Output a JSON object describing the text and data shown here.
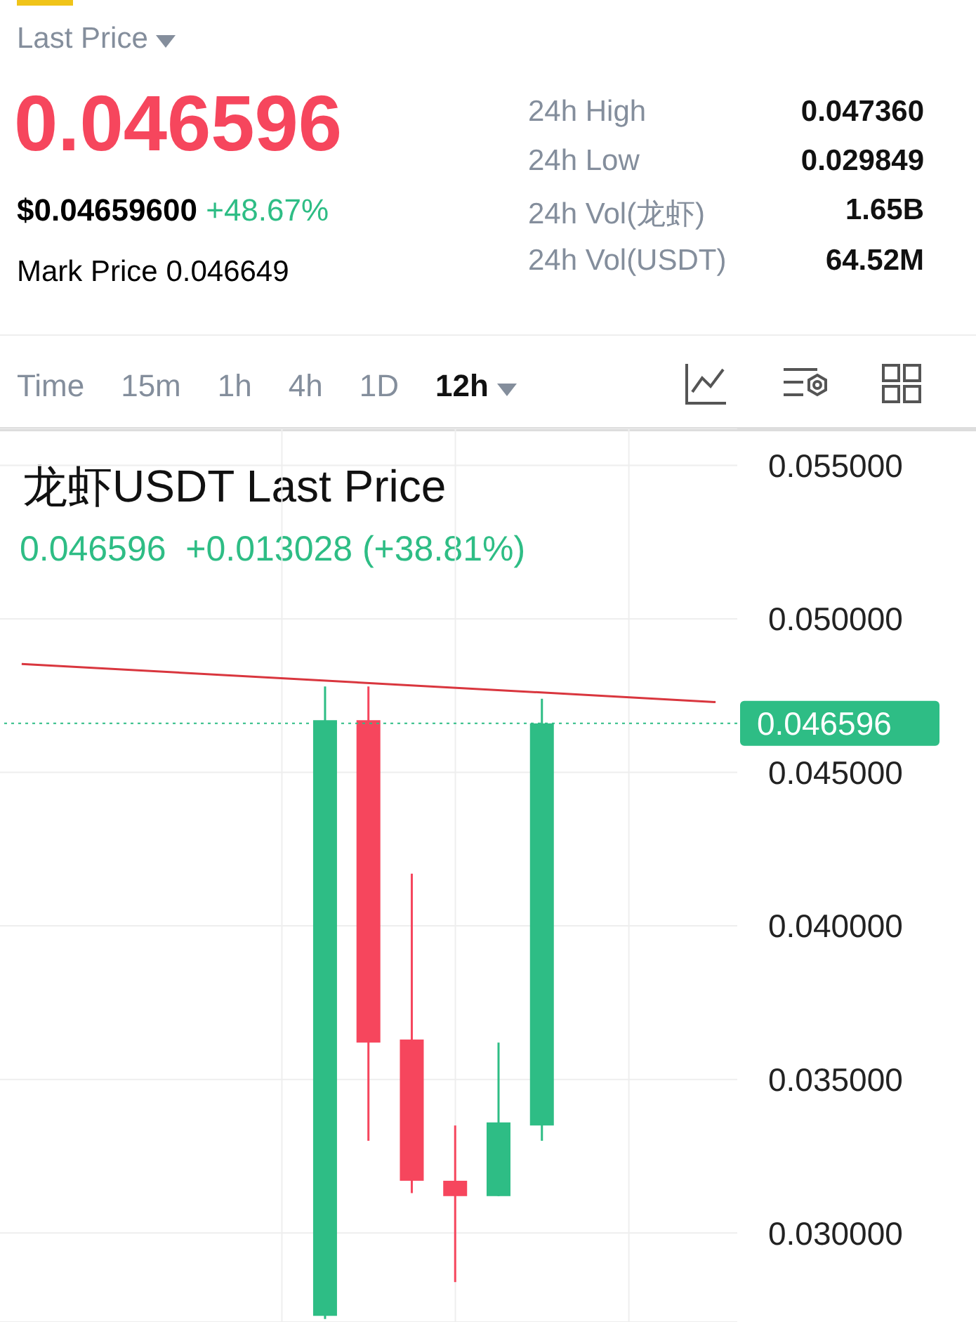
{
  "chart_data": {
    "type": "candlestick",
    "title": "龙虾USDT Last Price",
    "subtitle": "0.046596  +0.013028 (+38.81%)",
    "annotations": [
      "Last Price",
      "0.046596",
      "$0.04659600",
      "+48.67%",
      "Mark Price",
      "0.046649",
      "24h High",
      "0.047360",
      "24h Low",
      "0.029849",
      "24h Vol(龙虾)",
      "1.65B",
      "24h Vol(USDT)",
      "64.52M",
      "Time",
      "15m",
      "1h",
      "4h",
      "1D",
      "12h"
    ],
    "categories": [
      null,
      null,
      null,
      null,
      null,
      null,
      null,
      null,
      null,
      null,
      null,
      null,
      null,
      null,
      null,
      null,
      null
    ],
    "ohlc": [
      null,
      null,
      null,
      null,
      null,
      null,
      null,
      [
        0.0273,
        0.0478,
        0.0272,
        0.0467
      ],
      [
        0.0467,
        0.0478,
        0.033,
        0.0362
      ],
      [
        0.0363,
        0.0417,
        0.0313,
        0.0317
      ],
      [
        0.0317,
        0.0335,
        0.0284,
        0.0312
      ],
      [
        0.0312,
        0.0362,
        0.0312,
        0.0336
      ],
      [
        0.0335,
        0.0474,
        0.033,
        0.046596
      ],
      null,
      null,
      null,
      null
    ],
    "colors": [
      null,
      null,
      null,
      null,
      null,
      null,
      null,
      "#2ebd85",
      "#f6465d",
      "#f6465d",
      "#f6465d",
      "#2ebd85",
      "#2ebd85",
      null,
      null,
      null,
      null
    ],
    "series": [
      {
        "type": "line",
        "color": "#d9363e",
        "values": [
          0.04853,
          null,
          null,
          null,
          null,
          null,
          null,
          null,
          null,
          null,
          null,
          null,
          null,
          null,
          null,
          null,
          0.04729
        ]
      }
    ],
    "ylim": [
      0.0271,
      0.0562
    ],
    "yticks": [
      {
        "value": 0.03,
        "label": "0.030000"
      },
      {
        "value": 0.035,
        "label": "0.035000"
      },
      {
        "value": 0.04,
        "label": "0.040000"
      },
      {
        "value": 0.045,
        "label": "0.045000"
      },
      {
        "value": 0.05,
        "label": "0.050000"
      },
      {
        "value": 0.055,
        "label": "0.055000"
      }
    ],
    "ref_lines": [
      {
        "axis": "y",
        "value": 0.046596,
        "label": "0.046596",
        "color": "#2ebd85",
        "line_style": "dotted"
      }
    ],
    "grid": true,
    "tick_labels": "y"
  }
}
